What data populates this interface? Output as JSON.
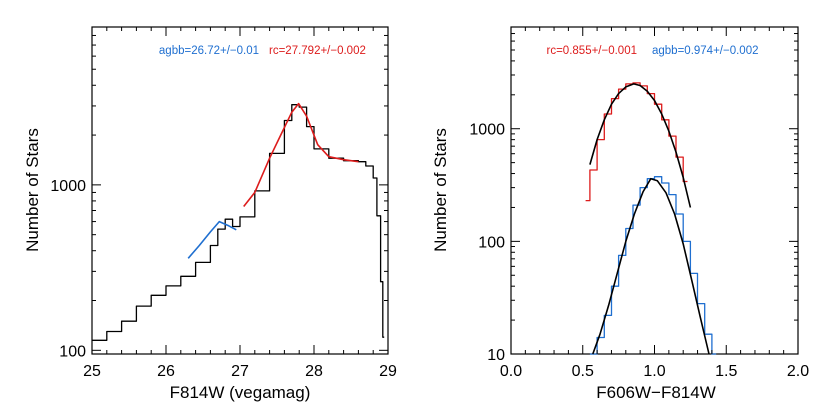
{
  "chart_data": [
    {
      "type": "line",
      "xlabel": "F814W (vegamag)",
      "ylabel": "Number of Stars",
      "xlim": [
        25,
        29
      ],
      "ylim": [
        95,
        9000
      ],
      "yscale": "log",
      "xticks": [
        25,
        26,
        27,
        28,
        29
      ],
      "xtick_labels": [
        "25",
        "26",
        "27",
        "28",
        "29"
      ],
      "yticks": [
        100,
        1000
      ],
      "ytick_labels": [
        "100",
        "1000"
      ],
      "grid": false,
      "annotations": [
        {
          "text": "agbb=26.72+/−0.01",
          "color": "#1f6fd0"
        },
        {
          "text": "rc=27.792+/−0.002",
          "color": "#dd1c1c"
        }
      ],
      "series": [
        {
          "color": "#000000",
          "style": "histogram",
          "x": [
            25.0,
            25.2,
            25.4,
            25.6,
            25.8,
            26.0,
            26.2,
            26.4,
            26.6,
            26.7,
            26.8,
            26.9,
            27.0,
            27.2,
            27.4,
            27.6,
            27.7,
            27.8,
            27.9,
            28.0,
            28.2,
            28.4,
            28.6,
            28.7,
            28.8,
            28.85,
            28.9,
            28.93
          ],
          "y": [
            115,
            130,
            150,
            185,
            215,
            245,
            280,
            340,
            430,
            540,
            620,
            560,
            640,
            920,
            1550,
            2450,
            3050,
            2950,
            2250,
            1650,
            1450,
            1400,
            1380,
            1300,
            1100,
            650,
            260,
            120
          ]
        },
        {
          "color": "#1f6fd0",
          "style": "fit",
          "x": [
            26.3,
            26.45,
            26.6,
            26.72,
            26.85,
            26.95
          ],
          "y": [
            360,
            430,
            520,
            600,
            565,
            535
          ]
        },
        {
          "color": "#dd1c1c",
          "style": "fit",
          "x": [
            27.05,
            27.2,
            27.4,
            27.55,
            27.7,
            27.792,
            27.9,
            28.05,
            28.2,
            28.4,
            28.6
          ],
          "y": [
            740,
            900,
            1450,
            2000,
            2750,
            3100,
            2600,
            1750,
            1480,
            1420,
            1380
          ]
        }
      ]
    },
    {
      "type": "line",
      "xlabel": "F606W−F814W",
      "ylabel": "Number of Stars",
      "xlim": [
        0.0,
        2.0
      ],
      "ylim": [
        10,
        8000
      ],
      "yscale": "log",
      "xticks": [
        0.0,
        0.5,
        1.0,
        1.5,
        2.0
      ],
      "xtick_labels": [
        "0.0",
        "0.5",
        "1.0",
        "1.5",
        "2.0"
      ],
      "yticks": [
        10,
        100,
        1000
      ],
      "ytick_labels": [
        "10",
        "100",
        "1000"
      ],
      "grid": false,
      "annotations": [
        {
          "text": "rc=0.855+/−0.001",
          "color": "#dd1c1c"
        },
        {
          "text": "agbb=0.974+/−0.002",
          "color": "#1f6fd0"
        }
      ],
      "series": [
        {
          "color": "#dd1c1c",
          "style": "histogram",
          "x": [
            0.52,
            0.55,
            0.6,
            0.65,
            0.7,
            0.75,
            0.8,
            0.85,
            0.9,
            0.95,
            1.0,
            1.05,
            1.1,
            1.15,
            1.2
          ],
          "y": [
            230,
            430,
            800,
            1350,
            1850,
            2250,
            2500,
            2550,
            2400,
            2050,
            1650,
            1200,
            860,
            560,
            340
          ]
        },
        {
          "color": "#000000",
          "style": "fit",
          "x": [
            0.55,
            0.6,
            0.65,
            0.7,
            0.75,
            0.8,
            0.855,
            0.9,
            0.95,
            1.0,
            1.05,
            1.1,
            1.15,
            1.2,
            1.25
          ],
          "y": [
            480,
            800,
            1200,
            1650,
            2050,
            2350,
            2500,
            2420,
            2150,
            1780,
            1350,
            950,
            620,
            370,
            200
          ]
        },
        {
          "color": "#1f6fd0",
          "style": "histogram",
          "x": [
            0.55,
            0.6,
            0.65,
            0.7,
            0.75,
            0.8,
            0.85,
            0.9,
            0.95,
            1.0,
            1.05,
            1.1,
            1.15,
            1.2,
            1.25,
            1.3,
            1.35,
            1.4
          ],
          "y": [
            10,
            14,
            22,
            40,
            75,
            130,
            210,
            300,
            360,
            375,
            330,
            260,
            175,
            100,
            52,
            28,
            15,
            10
          ]
        },
        {
          "color": "#000000",
          "style": "fit",
          "x": [
            0.57,
            0.62,
            0.68,
            0.74,
            0.8,
            0.86,
            0.92,
            0.974,
            1.02,
            1.08,
            1.14,
            1.2,
            1.26,
            1.32,
            1.38
          ],
          "y": [
            10,
            15,
            27,
            52,
            100,
            175,
            275,
            360,
            345,
            270,
            175,
            95,
            45,
            21,
            10
          ]
        }
      ]
    }
  ]
}
